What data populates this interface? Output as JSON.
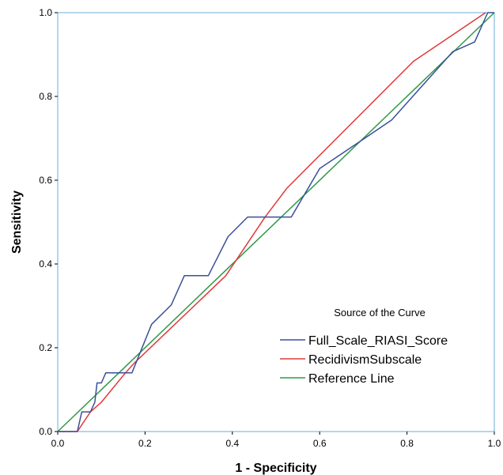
{
  "chart_data": {
    "type": "line",
    "xlabel": "1 - Specificity",
    "ylabel": "Sensitivity",
    "xlim": [
      0,
      1
    ],
    "ylim": [
      0,
      1
    ],
    "x_ticks": [
      "0.0",
      "0.2",
      "0.4",
      "0.6",
      "0.8",
      "1.0"
    ],
    "y_ticks": [
      "0.0",
      "0.2",
      "0.4",
      "0.6",
      "0.8",
      "1.0"
    ],
    "grid": false,
    "legend": {
      "title": "Source of the Curve",
      "placement": "lower-right"
    },
    "series": [
      {
        "name": "Full_Scale_RIASI_Score",
        "color": "#3b4f9b",
        "points": [
          [
            0.0,
            0.0
          ],
          [
            0.045,
            0.0
          ],
          [
            0.055,
            0.047
          ],
          [
            0.075,
            0.047
          ],
          [
            0.085,
            0.07
          ],
          [
            0.09,
            0.116
          ],
          [
            0.1,
            0.116
          ],
          [
            0.11,
            0.14
          ],
          [
            0.17,
            0.14
          ],
          [
            0.215,
            0.256
          ],
          [
            0.26,
            0.302
          ],
          [
            0.29,
            0.372
          ],
          [
            0.345,
            0.372
          ],
          [
            0.39,
            0.465
          ],
          [
            0.435,
            0.512
          ],
          [
            0.535,
            0.512
          ],
          [
            0.6,
            0.628
          ],
          [
            0.7,
            0.698
          ],
          [
            0.765,
            0.744
          ],
          [
            0.905,
            0.907
          ],
          [
            0.955,
            0.93
          ],
          [
            0.985,
            1.0
          ],
          [
            1.0,
            1.0
          ]
        ]
      },
      {
        "name": "RecidivismSubscale",
        "color": "#e03a3a",
        "points": [
          [
            0.0,
            0.0
          ],
          [
            0.045,
            0.0
          ],
          [
            0.075,
            0.047
          ],
          [
            0.1,
            0.07
          ],
          [
            0.155,
            0.14
          ],
          [
            0.175,
            0.163
          ],
          [
            0.385,
            0.372
          ],
          [
            0.475,
            0.512
          ],
          [
            0.525,
            0.581
          ],
          [
            0.815,
            0.884
          ],
          [
            0.98,
            1.0
          ]
        ]
      },
      {
        "name": "Reference Line",
        "color": "#2e9a4a",
        "points": [
          [
            0.0,
            0.0
          ],
          [
            1.0,
            1.0
          ]
        ]
      }
    ]
  }
}
